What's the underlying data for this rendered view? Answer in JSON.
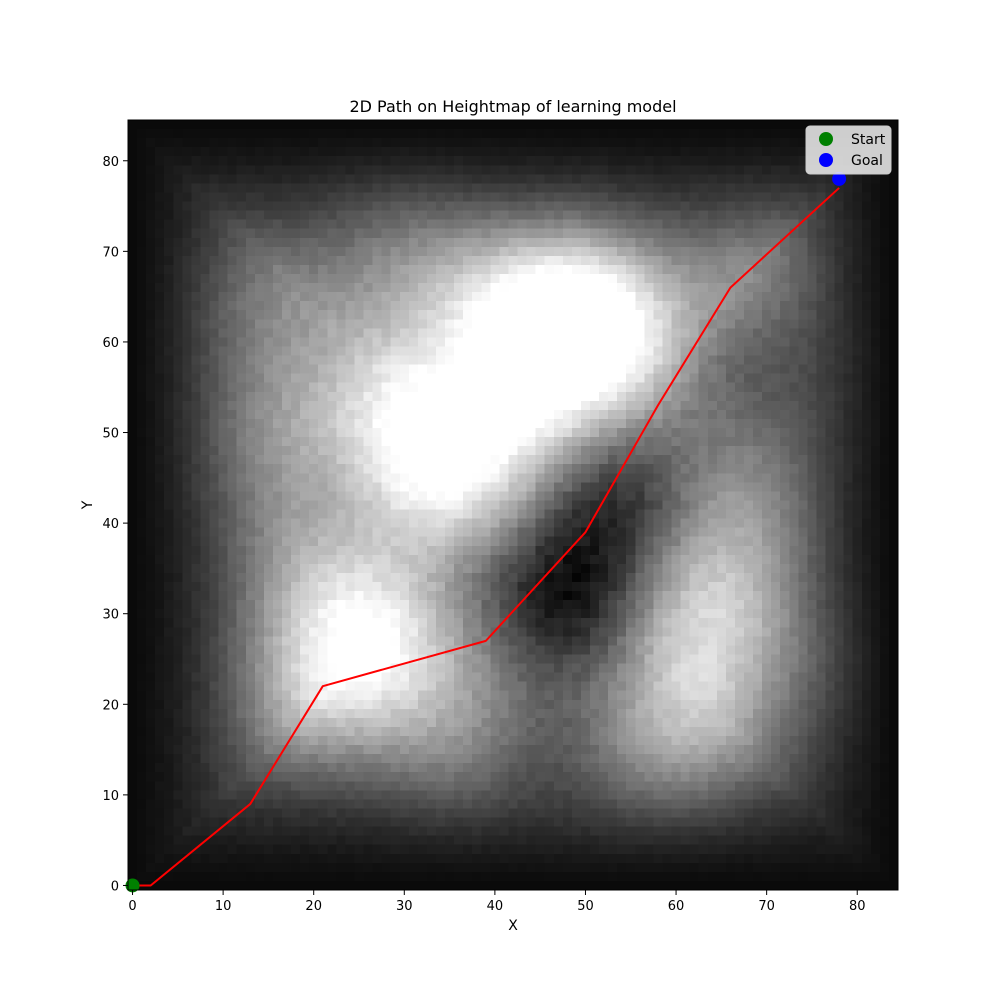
{
  "chart_data": {
    "type": "heatmap",
    "title": "2D Path on Heightmap of learning model",
    "xlabel": "X",
    "ylabel": "Y",
    "xlim": [
      -0.5,
      84.5
    ],
    "ylim": [
      84.5,
      -0.5
    ],
    "y_axis_inverted": true,
    "grid": false,
    "colormap": "gray",
    "legend_position": "upper-right",
    "x_ticks": [
      0,
      10,
      20,
      30,
      40,
      50,
      60,
      70,
      80
    ],
    "y_ticks": [
      0,
      10,
      20,
      30,
      40,
      50,
      60,
      70,
      80
    ],
    "heightmap": {
      "grid_size": 85,
      "features": [
        {
          "kind": "high",
          "x": 49,
          "y": 18,
          "value": 1.0
        },
        {
          "kind": "high",
          "x": 52,
          "y": 24,
          "value": 0.8
        },
        {
          "kind": "high",
          "x": 40,
          "y": 19,
          "value": 0.65
        },
        {
          "kind": "high",
          "x": 33,
          "y": 41,
          "value": 0.8
        },
        {
          "kind": "high",
          "x": 28,
          "y": 31,
          "value": 0.65
        },
        {
          "kind": "high",
          "x": 28,
          "y": 57,
          "value": 0.8
        },
        {
          "kind": "high",
          "x": 19,
          "y": 63,
          "value": 0.75
        },
        {
          "kind": "high",
          "x": 65,
          "y": 55,
          "value": 0.85
        },
        {
          "kind": "high",
          "x": 61,
          "y": 69,
          "value": 0.75
        },
        {
          "kind": "high",
          "x": 70,
          "y": 16,
          "value": 0.6
        },
        {
          "kind": "high",
          "x": 42,
          "y": 32,
          "value": 0.7
        },
        {
          "kind": "high",
          "x": 19,
          "y": 49,
          "value": 0.6
        },
        {
          "kind": "high",
          "x": 13,
          "y": 35,
          "value": 0.55
        },
        {
          "kind": "high",
          "x": 70,
          "y": 43,
          "value": 0.6
        },
        {
          "kind": "high",
          "x": 36,
          "y": 70,
          "value": 0.55
        },
        {
          "kind": "high",
          "x": 50,
          "y": 72,
          "value": 0.45
        },
        {
          "kind": "high",
          "x": 30,
          "y": 12,
          "value": 0.5
        },
        {
          "kind": "high",
          "x": 12,
          "y": 20,
          "value": 0.5
        },
        {
          "kind": "high",
          "x": 78,
          "y": 60,
          "value": 0.45
        },
        {
          "kind": "high",
          "x": 75,
          "y": 28,
          "value": 0.5
        },
        {
          "kind": "low",
          "x": 48,
          "y": 52,
          "value": 0.9
        },
        {
          "kind": "low",
          "x": 53,
          "y": 41,
          "value": 0.7
        },
        {
          "kind": "low",
          "x": 47,
          "y": 70,
          "value": 0.6
        },
        {
          "kind": "low",
          "x": 70,
          "y": 26,
          "value": 0.55
        },
        {
          "kind": "low",
          "x": 34,
          "y": 49,
          "value": 0.4
        },
        {
          "kind": "low",
          "x": 24,
          "y": 43,
          "value": 0.35
        }
      ]
    },
    "series": [
      {
        "name": "path",
        "color": "#ff0000",
        "x": [
          0,
          2,
          13,
          21,
          39,
          50,
          58,
          66,
          78
        ],
        "y": [
          0,
          0,
          9,
          22,
          27,
          39,
          53,
          66,
          77
        ]
      }
    ],
    "markers": [
      {
        "name": "Start",
        "color": "#008000",
        "x": 0,
        "y": 0
      },
      {
        "name": "Goal",
        "color": "#0000ff",
        "x": 78,
        "y": 78
      }
    ]
  }
}
